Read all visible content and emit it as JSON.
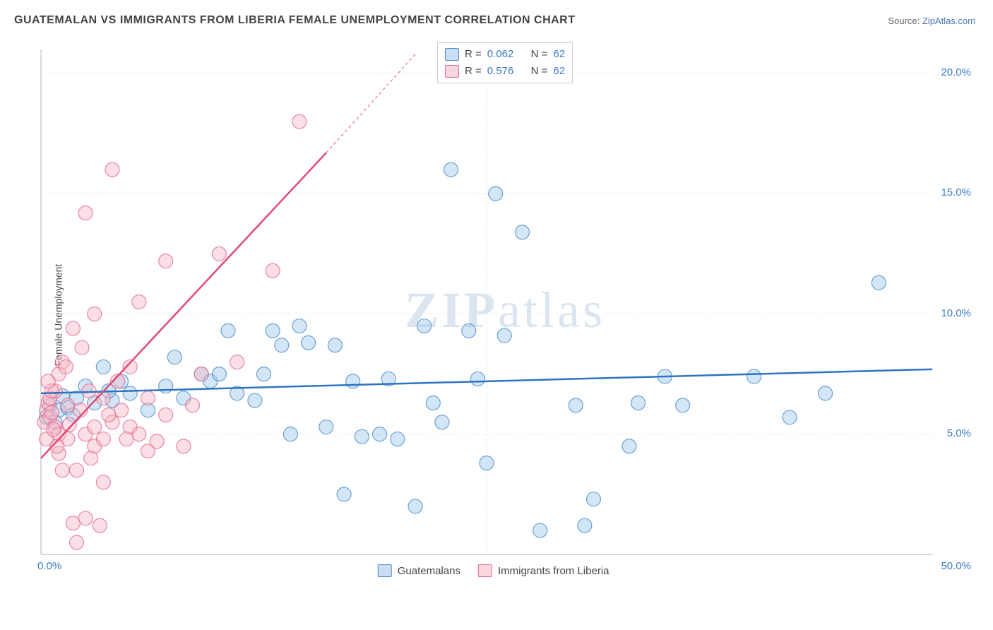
{
  "title": "GUATEMALAN VS IMMIGRANTS FROM LIBERIA FEMALE UNEMPLOYMENT CORRELATION CHART",
  "source_label": "Source: ",
  "source_name": "ZipAtlas.com",
  "y_axis_label": "Female Unemployment",
  "watermark": "ZIPatlas",
  "chart": {
    "type": "scatter",
    "xlim": [
      0,
      50
    ],
    "ylim": [
      0,
      21
    ],
    "x_ticks": [
      {
        "v": 0,
        "l": "0.0%"
      },
      {
        "v": 50,
        "l": "50.0%"
      }
    ],
    "y_ticks": [
      {
        "v": 5,
        "l": "5.0%"
      },
      {
        "v": 10,
        "l": "10.0%"
      },
      {
        "v": 15,
        "l": "15.0%"
      },
      {
        "v": 20,
        "l": "20.0%"
      }
    ],
    "grid_color": "#e0e0e0",
    "grid_dash": "2,3",
    "axis_color": "#cccccc",
    "background_color": "#ffffff",
    "marker_radius": 10,
    "marker_opacity": 0.45,
    "series": [
      {
        "name": "Guatemalans",
        "fill": "#9ec8ec",
        "stroke": "#4a8cc9",
        "trend": {
          "color": "#2f74c0",
          "width": 2.5,
          "dash": "",
          "p1": [
            0,
            6.7
          ],
          "p2": [
            50,
            7.7
          ]
        },
        "r_value": "0.062",
        "n_value": "62",
        "points": [
          [
            0.3,
            5.7
          ],
          [
            0.5,
            6.2
          ],
          [
            1,
            6.0
          ],
          [
            1.2,
            6.6
          ],
          [
            1.5,
            6.1
          ],
          [
            2,
            6.5
          ],
          [
            2.5,
            7.0
          ],
          [
            3,
            6.3
          ],
          [
            3.5,
            7.8
          ],
          [
            4,
            6.4
          ],
          [
            4.5,
            7.2
          ],
          [
            5,
            6.7
          ],
          [
            6,
            6.0
          ],
          [
            7,
            7.0
          ],
          [
            7.5,
            8.2
          ],
          [
            8,
            6.5
          ],
          [
            9,
            7.5
          ],
          [
            9.5,
            7.2
          ],
          [
            10,
            7.5
          ],
          [
            10.5,
            9.3
          ],
          [
            11,
            6.7
          ],
          [
            12,
            6.4
          ],
          [
            12.5,
            7.5
          ],
          [
            13,
            9.3
          ],
          [
            13.5,
            8.7
          ],
          [
            14,
            5.0
          ],
          [
            14.5,
            9.5
          ],
          [
            15,
            8.8
          ],
          [
            16,
            5.3
          ],
          [
            16.5,
            8.7
          ],
          [
            17,
            2.5
          ],
          [
            17.5,
            7.2
          ],
          [
            18,
            4.9
          ],
          [
            19,
            5.0
          ],
          [
            19.5,
            7.3
          ],
          [
            20,
            4.8
          ],
          [
            21,
            2.0
          ],
          [
            21.5,
            9.5
          ],
          [
            22,
            6.3
          ],
          [
            22.5,
            5.5
          ],
          [
            23,
            16.0
          ],
          [
            24,
            9.3
          ],
          [
            24.5,
            7.3
          ],
          [
            25,
            3.8
          ],
          [
            25.5,
            15.0
          ],
          [
            26,
            9.1
          ],
          [
            27,
            13.4
          ],
          [
            28,
            1.0
          ],
          [
            30,
            6.2
          ],
          [
            30.5,
            1.2
          ],
          [
            31,
            2.3
          ],
          [
            33,
            4.5
          ],
          [
            33.5,
            6.3
          ],
          [
            35,
            7.4
          ],
          [
            36,
            6.2
          ],
          [
            40,
            7.4
          ],
          [
            42,
            5.7
          ],
          [
            44,
            6.7
          ],
          [
            47,
            11.3
          ],
          [
            0.8,
            5.5
          ],
          [
            1.8,
            5.8
          ],
          [
            3.8,
            6.8
          ]
        ]
      },
      {
        "name": "Immigrants from Liberia",
        "fill": "#f5b8c7",
        "stroke": "#e66a8c",
        "trend": {
          "color": "#e04a78",
          "width": 2.5,
          "dash": "",
          "p1": [
            0,
            4.0
          ],
          "p2": [
            16,
            16.7
          ]
        },
        "trend_ext": {
          "color": "#e66a8c",
          "width": 1.2,
          "dash": "4,4",
          "p1": [
            16,
            16.7
          ],
          "p2": [
            21,
            20.8
          ]
        },
        "r_value": "0.576",
        "n_value": "62",
        "points": [
          [
            0.2,
            5.5
          ],
          [
            0.3,
            6.0
          ],
          [
            0.4,
            6.3
          ],
          [
            0.5,
            5.7
          ],
          [
            0.5,
            6.5
          ],
          [
            0.6,
            5.9
          ],
          [
            0.8,
            6.8
          ],
          [
            0.8,
            5.3
          ],
          [
            1,
            7.5
          ],
          [
            1,
            5.0
          ],
          [
            1.2,
            3.5
          ],
          [
            1.2,
            8.0
          ],
          [
            1.5,
            6.2
          ],
          [
            1.5,
            4.8
          ],
          [
            1.8,
            9.4
          ],
          [
            1.8,
            1.3
          ],
          [
            2,
            0.5
          ],
          [
            2,
            3.5
          ],
          [
            2.2,
            6.0
          ],
          [
            2.3,
            8.6
          ],
          [
            2.5,
            14.2
          ],
          [
            2.5,
            5.0
          ],
          [
            2.5,
            1.5
          ],
          [
            3,
            4.5
          ],
          [
            3,
            5.3
          ],
          [
            3,
            10.0
          ],
          [
            3.3,
            1.2
          ],
          [
            3.5,
            4.8
          ],
          [
            3.5,
            6.5
          ],
          [
            3.5,
            3.0
          ],
          [
            4,
            5.5
          ],
          [
            4,
            16.0
          ],
          [
            4.3,
            7.2
          ],
          [
            4.5,
            6.0
          ],
          [
            5,
            5.3
          ],
          [
            5,
            7.8
          ],
          [
            5.5,
            10.5
          ],
          [
            5.5,
            5.0
          ],
          [
            6,
            4.3
          ],
          [
            6,
            6.5
          ],
          [
            6.5,
            4.7
          ],
          [
            7,
            12.2
          ],
          [
            7,
            5.8
          ],
          [
            8,
            4.5
          ],
          [
            8.5,
            6.2
          ],
          [
            9,
            7.5
          ],
          [
            10,
            12.5
          ],
          [
            11,
            8.0
          ],
          [
            13,
            11.8
          ],
          [
            14.5,
            18.0
          ],
          [
            1.6,
            5.4
          ],
          [
            2.7,
            6.8
          ],
          [
            0.6,
            6.8
          ],
          [
            1.0,
            4.2
          ],
          [
            0.4,
            7.2
          ],
          [
            2.8,
            4.0
          ],
          [
            4.8,
            4.8
          ],
          [
            3.8,
            5.8
          ],
          [
            1.4,
            7.8
          ],
          [
            0.9,
            4.5
          ],
          [
            0.3,
            4.8
          ],
          [
            0.7,
            5.2
          ]
        ]
      }
    ]
  },
  "legend_top": {
    "r_label": "R =",
    "n_label": "N ="
  },
  "legend_bottom": {
    "items": [
      "Guatemalans",
      "Immigrants from Liberia"
    ]
  }
}
